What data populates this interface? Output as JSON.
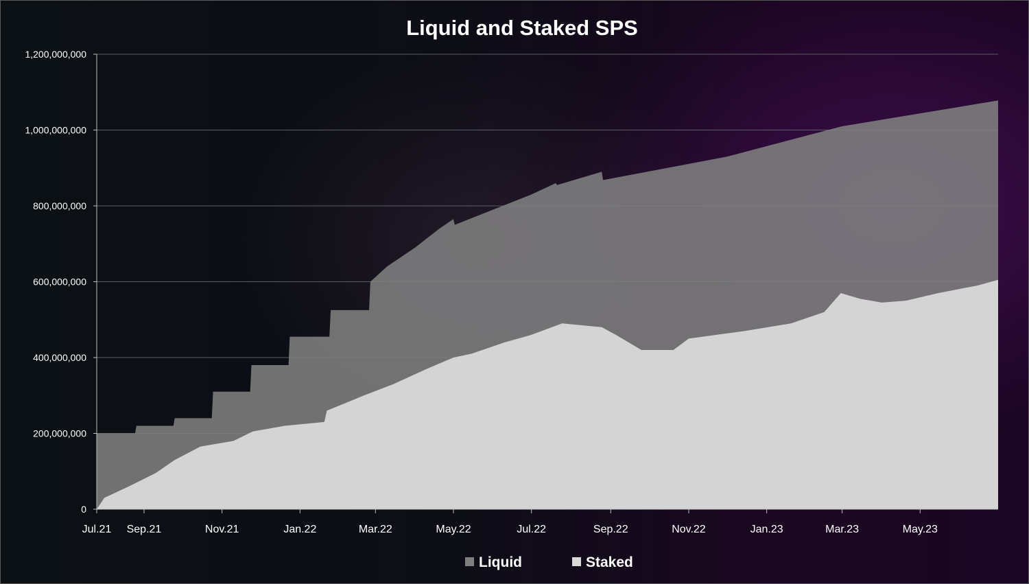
{
  "chart_data": {
    "type": "area",
    "title": "Liquid and Staked SPS",
    "xlabel": "",
    "ylabel": "",
    "ylim": [
      0,
      1200000000
    ],
    "y_ticks": [
      "0",
      "200,000,000",
      "400,000,000",
      "600,000,000",
      "800,000,000",
      "1,000,000,000",
      "1,200,000,000"
    ],
    "x_tick_labels": [
      "Jul.21",
      "Sep.21",
      "Nov.21",
      "Jan.22",
      "Mar.22",
      "May.22",
      "Jul.22",
      "Sep.22",
      "Nov.22",
      "Jan.23",
      "Mar.23",
      "May.23"
    ],
    "x_range": [
      "2021-07-26",
      "2023-07-01"
    ],
    "grid": true,
    "legend_position": "bottom",
    "series": [
      {
        "name": "Liquid",
        "color": "#7f7f7f",
        "points": [
          [
            "2021-07-26",
            200000000
          ],
          [
            "2021-08-25",
            200000000
          ],
          [
            "2021-08-26",
            220000000
          ],
          [
            "2021-09-24",
            220000000
          ],
          [
            "2021-09-25",
            240000000
          ],
          [
            "2021-10-24",
            240000000
          ],
          [
            "2021-10-25",
            310000000
          ],
          [
            "2021-11-23",
            310000000
          ],
          [
            "2021-11-24",
            380000000
          ],
          [
            "2021-12-23",
            380000000
          ],
          [
            "2021-12-24",
            455000000
          ],
          [
            "2022-01-24",
            455000000
          ],
          [
            "2022-01-25",
            525000000
          ],
          [
            "2022-02-24",
            525000000
          ],
          [
            "2022-02-25",
            600000000
          ],
          [
            "2022-03-10",
            640000000
          ],
          [
            "2022-04-01",
            690000000
          ],
          [
            "2022-04-20",
            740000000
          ],
          [
            "2022-05-01",
            765000000
          ],
          [
            "2022-05-02",
            750000000
          ],
          [
            "2022-06-01",
            790000000
          ],
          [
            "2022-07-01",
            830000000
          ],
          [
            "2022-07-20",
            860000000
          ],
          [
            "2022-07-21",
            855000000
          ],
          [
            "2022-08-25",
            890000000
          ],
          [
            "2022-08-26",
            868000000
          ],
          [
            "2022-12-01",
            930000000
          ],
          [
            "2023-03-01",
            1010000000
          ],
          [
            "2023-07-01",
            1078000000
          ]
        ]
      },
      {
        "name": "Staked",
        "color": "#d9d9d9",
        "points": [
          [
            "2021-07-26",
            0
          ],
          [
            "2021-08-01",
            30000000
          ],
          [
            "2021-08-20",
            60000000
          ],
          [
            "2021-09-10",
            95000000
          ],
          [
            "2021-09-25",
            130000000
          ],
          [
            "2021-10-15",
            165000000
          ],
          [
            "2021-11-10",
            180000000
          ],
          [
            "2021-11-25",
            205000000
          ],
          [
            "2021-12-20",
            220000000
          ],
          [
            "2022-01-20",
            230000000
          ],
          [
            "2022-01-22",
            260000000
          ],
          [
            "2022-02-20",
            300000000
          ],
          [
            "2022-03-15",
            330000000
          ],
          [
            "2022-04-10",
            370000000
          ],
          [
            "2022-05-01",
            400000000
          ],
          [
            "2022-05-15",
            410000000
          ],
          [
            "2022-06-10",
            440000000
          ],
          [
            "2022-07-01",
            460000000
          ],
          [
            "2022-07-25",
            490000000
          ],
          [
            "2022-08-25",
            480000000
          ],
          [
            "2022-09-05",
            460000000
          ],
          [
            "2022-09-25",
            420000000
          ],
          [
            "2022-10-20",
            420000000
          ],
          [
            "2022-11-01",
            450000000
          ],
          [
            "2022-12-15",
            470000000
          ],
          [
            "2023-01-20",
            490000000
          ],
          [
            "2023-02-15",
            520000000
          ],
          [
            "2023-02-28",
            570000000
          ],
          [
            "2023-03-15",
            555000000
          ],
          [
            "2023-04-01",
            545000000
          ],
          [
            "2023-04-20",
            550000000
          ],
          [
            "2023-05-15",
            570000000
          ],
          [
            "2023-06-15",
            590000000
          ],
          [
            "2023-07-01",
            605000000
          ]
        ]
      }
    ]
  }
}
